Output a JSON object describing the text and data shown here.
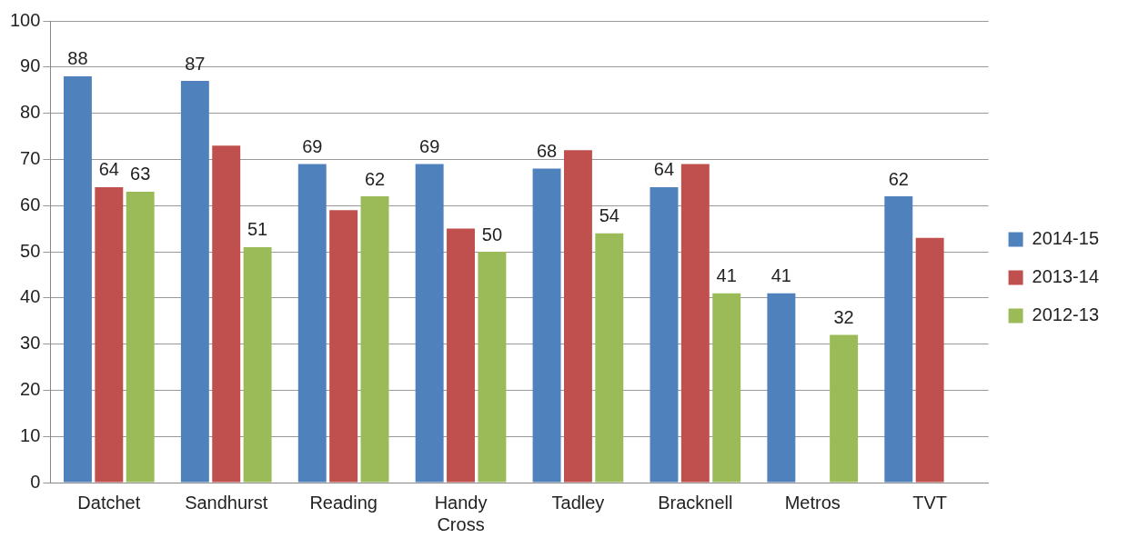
{
  "chart_data": {
    "type": "bar",
    "categories": [
      "Datchet",
      "Sandhurst",
      "Reading",
      "Handy Cross",
      "Tadley",
      "Bracknell",
      "Metros",
      "TVT"
    ],
    "series": [
      {
        "name": "2014-15",
        "color": "#4f81bd",
        "values": [
          88,
          87,
          69,
          69,
          68,
          64,
          41,
          62
        ],
        "value_labels": [
          "88",
          "87",
          "69",
          "69",
          "68",
          "64",
          "41",
          "62"
        ]
      },
      {
        "name": "2013-14",
        "color": "#c0504d",
        "values": [
          64,
          73,
          59,
          55,
          72,
          69,
          null,
          53
        ],
        "value_labels": [
          "64",
          null,
          null,
          null,
          null,
          null,
          null,
          null
        ]
      },
      {
        "name": "2012-13",
        "color": "#9bbb59",
        "values": [
          63,
          51,
          62,
          50,
          54,
          41,
          32,
          null
        ],
        "value_labels": [
          "63",
          "51",
          "62",
          "50",
          "54",
          "41",
          "32",
          null
        ]
      }
    ],
    "ylim": [
      0,
      100
    ],
    "yticks": [
      0,
      10,
      20,
      30,
      40,
      50,
      60,
      70,
      80,
      90,
      100
    ],
    "grid": "y",
    "legend": "right"
  }
}
